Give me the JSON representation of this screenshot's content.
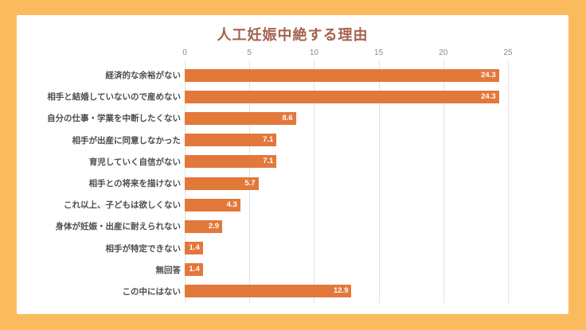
{
  "colors": {
    "frame": "#FCBA5F",
    "bar": "#E3783B",
    "title": "#A5624E",
    "grid": "#E2E2E2",
    "tick_label": "#8C8C8C",
    "category_label": "#4D4D4D",
    "value_label": "#FFFFFF",
    "card_background": "#FFFFFF"
  },
  "chart_data": {
    "type": "bar",
    "orientation": "horizontal",
    "title": "人工妊娠中絶する理由",
    "categories": [
      "経済的な余裕がない",
      "相手と結婚していないので産めない",
      "自分の仕事・学業を中断したくない",
      "相手が出産に同意しなかった",
      "育児していく自信がない",
      "相手との将来を描けない",
      "これ以上、子どもは欲しくない",
      "身体が妊娠・出産に耐えられない",
      "相手が特定できない",
      "無回答",
      "この中にはない"
    ],
    "values": [
      24.3,
      24.3,
      8.6,
      7.1,
      7.1,
      5.7,
      4.3,
      2.9,
      1.4,
      1.4,
      12.9
    ],
    "value_labels": [
      "24.3",
      "24.3",
      "8.6",
      "7.1",
      "7.1",
      "5.7",
      "4.3",
      "2.9",
      "1.4",
      "1.4",
      "12.9"
    ],
    "xlabel": "",
    "ylabel": "",
    "xlim": [
      0,
      25
    ],
    "x_ticks": [
      0,
      5,
      10,
      15,
      20,
      25
    ],
    "tick_labels": [
      "0",
      "5",
      "10",
      "15",
      "20",
      "25"
    ],
    "axis_position": "top",
    "grid": "vertical",
    "legend": "none",
    "value_label_position": "inside-end"
  }
}
